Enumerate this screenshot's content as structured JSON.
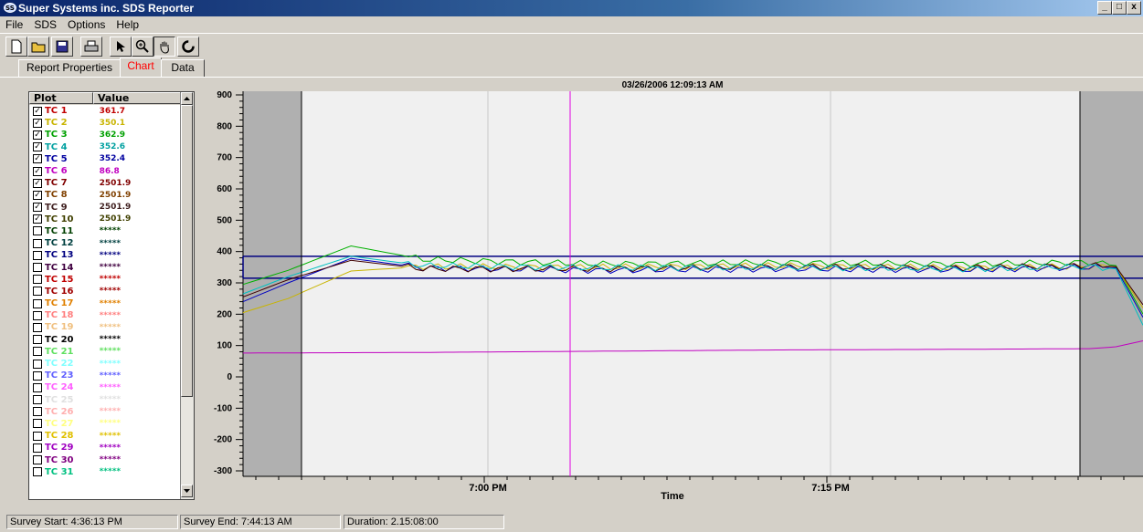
{
  "window": {
    "title": "Super Systems inc. SDS Reporter",
    "controls": [
      "_",
      "□",
      "x"
    ]
  },
  "menu": [
    "File",
    "SDS",
    "Options",
    "Help"
  ],
  "toolbar": [
    "new-icon",
    "open-icon",
    "save-icon",
    "print-icon",
    "pointer-icon",
    "zoom-icon",
    "pan-hand-icon",
    "refresh-icon"
  ],
  "tabs": [
    {
      "label": "Report Properties",
      "active": false
    },
    {
      "label": "Chart",
      "active": true,
      "color": "#ff0000"
    },
    {
      "label": "Data",
      "active": false
    }
  ],
  "plot_list": {
    "headers": {
      "plot": "Plot",
      "value": "Value"
    },
    "rows": [
      {
        "name": "TC 1",
        "value": "361.7",
        "checked": true,
        "color": "#c00000"
      },
      {
        "name": "TC 2",
        "value": "350.1",
        "checked": true,
        "color": "#c8b400"
      },
      {
        "name": "TC 3",
        "value": "362.9",
        "checked": true,
        "color": "#00a000"
      },
      {
        "name": "TC 4",
        "value": "352.6",
        "checked": true,
        "color": "#00a0a0"
      },
      {
        "name": "TC 5",
        "value": "352.4",
        "checked": true,
        "color": "#0000a0"
      },
      {
        "name": "TC 6",
        "value": "86.8",
        "checked": true,
        "color": "#c000c0"
      },
      {
        "name": "TC 7",
        "value": "2501.9",
        "checked": true,
        "color": "#800000"
      },
      {
        "name": "TC 8",
        "value": "2501.9",
        "checked": true,
        "color": "#804000"
      },
      {
        "name": "TC 9",
        "value": "2501.9",
        "checked": true,
        "color": "#402020"
      },
      {
        "name": "TC 10",
        "value": "2501.9",
        "checked": true,
        "color": "#404000"
      },
      {
        "name": "TC 11",
        "value": "*****",
        "checked": false,
        "color": "#004000"
      },
      {
        "name": "TC 12",
        "value": "*****",
        "checked": false,
        "color": "#004040"
      },
      {
        "name": "TC 13",
        "value": "*****",
        "checked": false,
        "color": "#000080"
      },
      {
        "name": "TC 14",
        "value": "*****",
        "checked": false,
        "color": "#400040"
      },
      {
        "name": "TC 15",
        "value": "*****",
        "checked": false,
        "color": "#c00000"
      },
      {
        "name": "TC 16",
        "value": "*****",
        "checked": false,
        "color": "#a00000"
      },
      {
        "name": "TC 17",
        "value": "*****",
        "checked": false,
        "color": "#e08000"
      },
      {
        "name": "TC 18",
        "value": "*****",
        "checked": false,
        "color": "#ff8080"
      },
      {
        "name": "TC 19",
        "value": "*****",
        "checked": false,
        "color": "#f0c080"
      },
      {
        "name": "TC 20",
        "value": "*****",
        "checked": false,
        "color": "#000000"
      },
      {
        "name": "TC 21",
        "value": "*****",
        "checked": false,
        "color": "#60e060"
      },
      {
        "name": "TC 22",
        "value": "*****",
        "checked": false,
        "color": "#80ffff"
      },
      {
        "name": "TC 23",
        "value": "*****",
        "checked": false,
        "color": "#6060ff"
      },
      {
        "name": "TC 24",
        "value": "*****",
        "checked": false,
        "color": "#ff60ff"
      },
      {
        "name": "TC 25",
        "value": "*****",
        "checked": false,
        "color": "#e0e0e0"
      },
      {
        "name": "TC 26",
        "value": "*****",
        "checked": false,
        "color": "#ffb0b0"
      },
      {
        "name": "TC 27",
        "value": "*****",
        "checked": false,
        "color": "#ffff80"
      },
      {
        "name": "TC 28",
        "value": "*****",
        "checked": false,
        "color": "#e0c000"
      },
      {
        "name": "TC 29",
        "value": "*****",
        "checked": false,
        "color": "#a000c0"
      },
      {
        "name": "TC 30",
        "value": "*****",
        "checked": false,
        "color": "#800080"
      },
      {
        "name": "TC 31",
        "value": "*****",
        "checked": false,
        "color": "#00c080"
      }
    ]
  },
  "chart_data": {
    "type": "line",
    "title": "03/26/2006 12:09:13 AM",
    "xlabel": "Time",
    "ylabel": "",
    "ylim": [
      -300,
      900
    ],
    "yticks": [
      900,
      800,
      700,
      600,
      500,
      400,
      300,
      200,
      100,
      0,
      -100,
      -200,
      -300
    ],
    "xtick_labels": [
      "7:00 PM",
      "7:15 PM"
    ],
    "band": [
      315,
      385
    ],
    "series": [
      {
        "color": "#00b000",
        "points": [
          [
            0,
            295
          ],
          [
            0.05,
            340
          ],
          [
            0.12,
            418
          ],
          [
            0.2,
            375
          ],
          [
            0.4,
            360
          ],
          [
            0.6,
            365
          ],
          [
            0.8,
            360
          ],
          [
            0.94,
            366
          ],
          [
            0.97,
            355
          ],
          [
            1,
            200
          ]
        ]
      },
      {
        "color": "#c8b400",
        "points": [
          [
            0,
            205
          ],
          [
            0.05,
            250
          ],
          [
            0.12,
            338
          ],
          [
            0.2,
            352
          ],
          [
            0.4,
            350
          ],
          [
            0.6,
            355
          ],
          [
            0.8,
            348
          ],
          [
            0.94,
            352
          ],
          [
            0.97,
            350
          ],
          [
            1,
            220
          ]
        ]
      },
      {
        "color": "#0000c0",
        "points": [
          [
            0,
            240
          ],
          [
            0.05,
            300
          ],
          [
            0.12,
            378
          ],
          [
            0.2,
            348
          ],
          [
            0.4,
            340
          ],
          [
            0.6,
            345
          ],
          [
            0.8,
            342
          ],
          [
            0.94,
            350
          ],
          [
            0.97,
            348
          ],
          [
            1,
            190
          ]
        ]
      },
      {
        "color": "#400000",
        "points": [
          [
            0,
            255
          ],
          [
            0.05,
            310
          ],
          [
            0.12,
            372
          ],
          [
            0.2,
            345
          ],
          [
            0.4,
            345
          ],
          [
            0.6,
            352
          ],
          [
            0.8,
            348
          ],
          [
            0.94,
            356
          ],
          [
            0.97,
            352
          ],
          [
            1,
            230
          ]
        ]
      },
      {
        "color": "#00c0c0",
        "points": [
          [
            0,
            265
          ],
          [
            0.05,
            320
          ],
          [
            0.12,
            385
          ],
          [
            0.2,
            355
          ],
          [
            0.4,
            348
          ],
          [
            0.6,
            350
          ],
          [
            0.8,
            345
          ],
          [
            0.94,
            352
          ],
          [
            0.97,
            345
          ],
          [
            1,
            165
          ]
        ]
      },
      {
        "color": "#c000c0",
        "points": [
          [
            0,
            76
          ],
          [
            0.2,
            78
          ],
          [
            0.4,
            82
          ],
          [
            0.6,
            86
          ],
          [
            0.8,
            88
          ],
          [
            0.94,
            90
          ],
          [
            0.97,
            96
          ],
          [
            1,
            115
          ]
        ]
      }
    ]
  },
  "status": {
    "start": "Survey Start: 4:36:13 PM",
    "end": "Survey End: 7:44:13 AM",
    "duration": "Duration: 2.15:08:00"
  }
}
